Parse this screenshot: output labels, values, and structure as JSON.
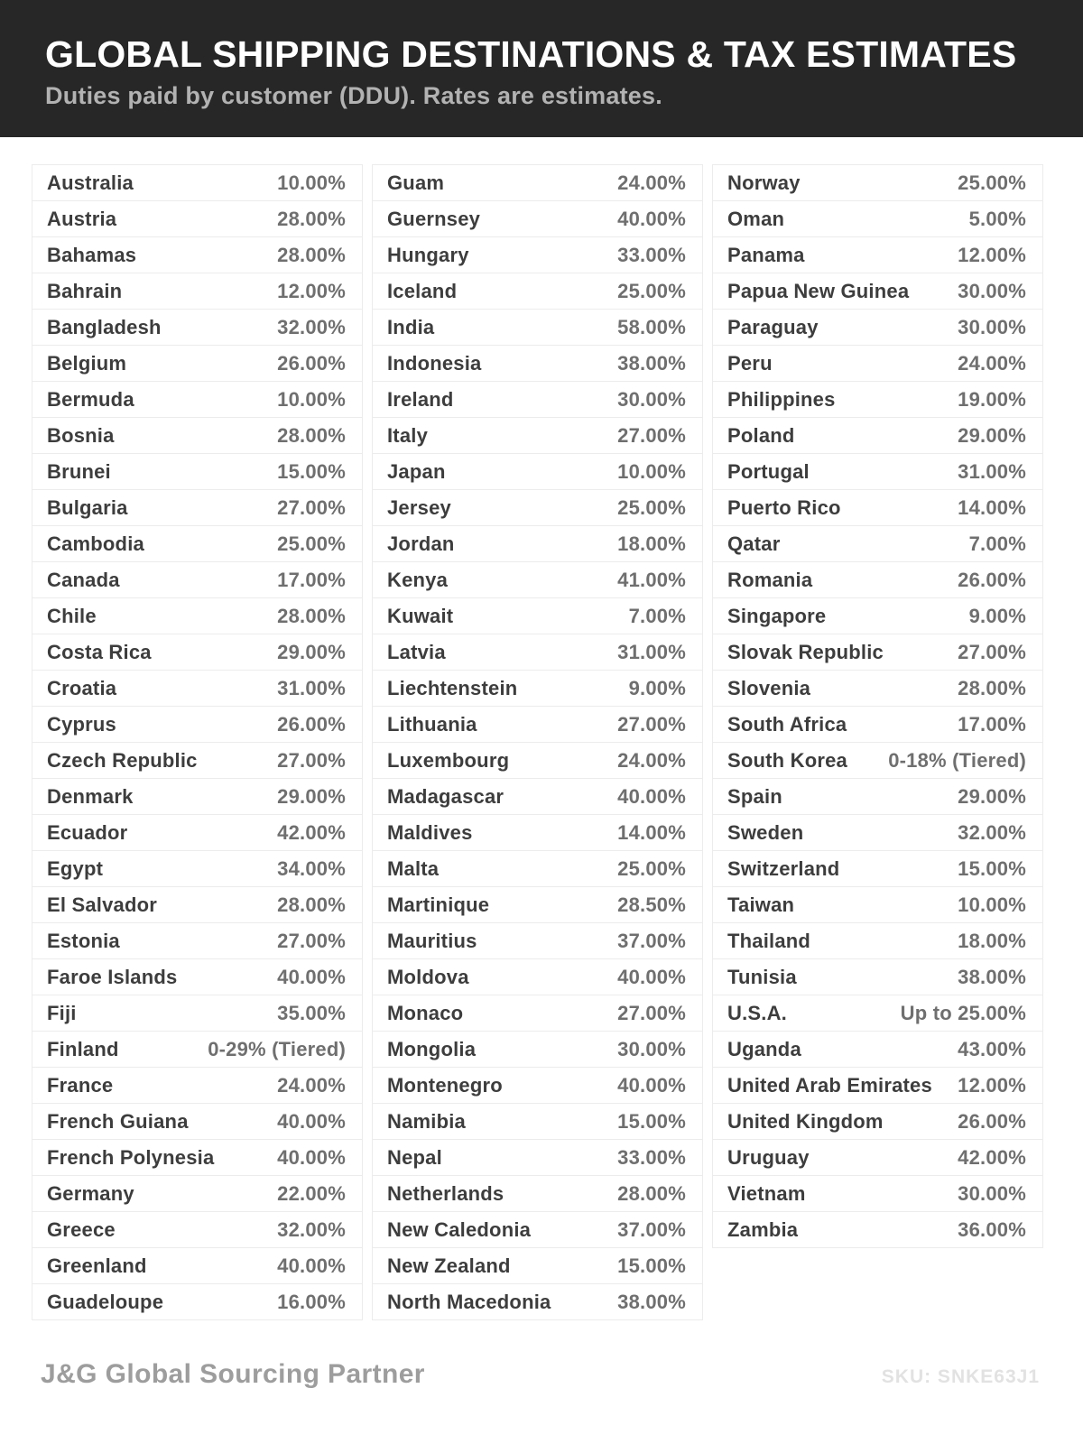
{
  "header": {
    "title": "GLOBAL SHIPPING DESTINATIONS & TAX ESTIMATES",
    "subtitle": "Duties paid by customer (DDU). Rates are estimates."
  },
  "columns": [
    [
      {
        "country": "Australia",
        "rate": "10.00%"
      },
      {
        "country": "Austria",
        "rate": "28.00%"
      },
      {
        "country": "Bahamas",
        "rate": "28.00%"
      },
      {
        "country": "Bahrain",
        "rate": "12.00%"
      },
      {
        "country": "Bangladesh",
        "rate": "32.00%"
      },
      {
        "country": "Belgium",
        "rate": "26.00%"
      },
      {
        "country": "Bermuda",
        "rate": "10.00%"
      },
      {
        "country": "Bosnia",
        "rate": "28.00%"
      },
      {
        "country": "Brunei",
        "rate": "15.00%"
      },
      {
        "country": "Bulgaria",
        "rate": "27.00%"
      },
      {
        "country": "Cambodia",
        "rate": "25.00%"
      },
      {
        "country": "Canada",
        "rate": "17.00%"
      },
      {
        "country": "Chile",
        "rate": "28.00%"
      },
      {
        "country": "Costa Rica",
        "rate": "29.00%"
      },
      {
        "country": "Croatia",
        "rate": "31.00%"
      },
      {
        "country": "Cyprus",
        "rate": "26.00%"
      },
      {
        "country": "Czech Republic",
        "rate": "27.00%"
      },
      {
        "country": "Denmark",
        "rate": "29.00%"
      },
      {
        "country": "Ecuador",
        "rate": "42.00%"
      },
      {
        "country": "Egypt",
        "rate": "34.00%"
      },
      {
        "country": "El Salvador",
        "rate": "28.00%"
      },
      {
        "country": "Estonia",
        "rate": "27.00%"
      },
      {
        "country": "Faroe Islands",
        "rate": "40.00%"
      },
      {
        "country": "Fiji",
        "rate": "35.00%"
      },
      {
        "country": "Finland",
        "rate": "0-29% (Tiered)"
      },
      {
        "country": "France",
        "rate": "24.00%"
      },
      {
        "country": "French Guiana",
        "rate": "40.00%"
      },
      {
        "country": "French Polynesia",
        "rate": "40.00%"
      },
      {
        "country": "Germany",
        "rate": "22.00%"
      },
      {
        "country": "Greece",
        "rate": "32.00%"
      },
      {
        "country": "Greenland",
        "rate": "40.00%"
      },
      {
        "country": "Guadeloupe",
        "rate": "16.00%"
      }
    ],
    [
      {
        "country": "Guam",
        "rate": "24.00%"
      },
      {
        "country": "Guernsey",
        "rate": "40.00%"
      },
      {
        "country": "Hungary",
        "rate": "33.00%"
      },
      {
        "country": "Iceland",
        "rate": "25.00%"
      },
      {
        "country": "India",
        "rate": "58.00%"
      },
      {
        "country": "Indonesia",
        "rate": "38.00%"
      },
      {
        "country": "Ireland",
        "rate": "30.00%"
      },
      {
        "country": "Italy",
        "rate": "27.00%"
      },
      {
        "country": "Japan",
        "rate": "10.00%"
      },
      {
        "country": "Jersey",
        "rate": "25.00%"
      },
      {
        "country": "Jordan",
        "rate": "18.00%"
      },
      {
        "country": "Kenya",
        "rate": "41.00%"
      },
      {
        "country": "Kuwait",
        "rate": "7.00%"
      },
      {
        "country": "Latvia",
        "rate": "31.00%"
      },
      {
        "country": "Liechtenstein",
        "rate": "9.00%"
      },
      {
        "country": "Lithuania",
        "rate": "27.00%"
      },
      {
        "country": "Luxembourg",
        "rate": "24.00%"
      },
      {
        "country": "Madagascar",
        "rate": "40.00%"
      },
      {
        "country": "Maldives",
        "rate": "14.00%"
      },
      {
        "country": "Malta",
        "rate": "25.00%"
      },
      {
        "country": "Martinique",
        "rate": "28.50%"
      },
      {
        "country": "Mauritius",
        "rate": "37.00%"
      },
      {
        "country": "Moldova",
        "rate": "40.00%"
      },
      {
        "country": "Monaco",
        "rate": "27.00%"
      },
      {
        "country": "Mongolia",
        "rate": "30.00%"
      },
      {
        "country": "Montenegro",
        "rate": "40.00%"
      },
      {
        "country": "Namibia",
        "rate": "15.00%"
      },
      {
        "country": "Nepal",
        "rate": "33.00%"
      },
      {
        "country": "Netherlands",
        "rate": "28.00%"
      },
      {
        "country": "New Caledonia",
        "rate": "37.00%"
      },
      {
        "country": "New Zealand",
        "rate": "15.00%"
      },
      {
        "country": "North Macedonia",
        "rate": "38.00%"
      }
    ],
    [
      {
        "country": "Norway",
        "rate": "25.00%"
      },
      {
        "country": "Oman",
        "rate": "5.00%"
      },
      {
        "country": "Panama",
        "rate": "12.00%"
      },
      {
        "country": "Papua New Guinea",
        "rate": "30.00%"
      },
      {
        "country": "Paraguay",
        "rate": "30.00%"
      },
      {
        "country": "Peru",
        "rate": "24.00%"
      },
      {
        "country": "Philippines",
        "rate": "19.00%"
      },
      {
        "country": "Poland",
        "rate": "29.00%"
      },
      {
        "country": "Portugal",
        "rate": "31.00%"
      },
      {
        "country": "Puerto Rico",
        "rate": "14.00%"
      },
      {
        "country": "Qatar",
        "rate": "7.00%"
      },
      {
        "country": "Romania",
        "rate": "26.00%"
      },
      {
        "country": "Singapore",
        "rate": "9.00%"
      },
      {
        "country": "Slovak Republic",
        "rate": "27.00%"
      },
      {
        "country": "Slovenia",
        "rate": "28.00%"
      },
      {
        "country": "South Africa",
        "rate": "17.00%"
      },
      {
        "country": "South Korea",
        "rate": "0-18% (Tiered)"
      },
      {
        "country": "Spain",
        "rate": "29.00%"
      },
      {
        "country": "Sweden",
        "rate": "32.00%"
      },
      {
        "country": "Switzerland",
        "rate": "15.00%"
      },
      {
        "country": "Taiwan",
        "rate": "10.00%"
      },
      {
        "country": "Thailand",
        "rate": "18.00%"
      },
      {
        "country": "Tunisia",
        "rate": "38.00%"
      },
      {
        "country": "U.S.A.",
        "rate": "Up to 25.00%"
      },
      {
        "country": "Uganda",
        "rate": "43.00%"
      },
      {
        "country": "United Arab Emirates",
        "rate": "12.00%"
      },
      {
        "country": "United Kingdom",
        "rate": "26.00%"
      },
      {
        "country": "Uruguay",
        "rate": "42.00%"
      },
      {
        "country": "Vietnam",
        "rate": "30.00%"
      },
      {
        "country": "Zambia",
        "rate": "36.00%"
      }
    ]
  ],
  "footer": {
    "brand": "J&G Global Sourcing Partner",
    "sku": "SKU: SNKE63J1"
  },
  "colors": {
    "header_bg": "#272727",
    "title_text": "#ffffff",
    "subtitle_text": "#b2b2b2",
    "country_text": "#3d3d3d",
    "rate_text": "#6f6f6f",
    "row_border": "#ececec",
    "brand_text": "#9d9d9d",
    "sku_text": "#e2e2e2",
    "page_bg": "#ffffff"
  }
}
